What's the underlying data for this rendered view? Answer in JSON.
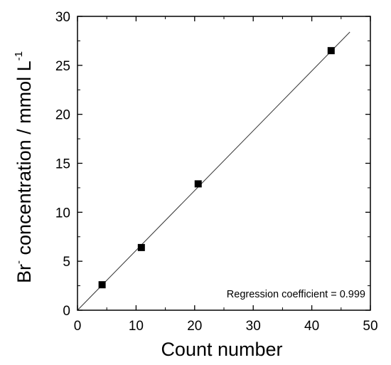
{
  "chart_data": {
    "type": "scatter",
    "xlabel": "Count number",
    "ylabel": {
      "base": "Br",
      "base_sup": "-",
      "text": " concentration / mmol L",
      "unit_sup": "-1"
    },
    "xlim": [
      0,
      50
    ],
    "ylim": [
      0,
      30
    ],
    "xticks": [
      0,
      10,
      20,
      30,
      40,
      50
    ],
    "yticks": [
      0,
      5,
      10,
      15,
      20,
      25,
      30
    ],
    "x_minor_step": 5,
    "y_minor_step": 2.5,
    "grid": false,
    "legend": "none",
    "series": [
      {
        "marker": "square",
        "color": "#000000",
        "points": [
          {
            "x": 4.2,
            "y": 2.6
          },
          {
            "x": 10.9,
            "y": 6.4
          },
          {
            "x": 20.6,
            "y": 12.9
          },
          {
            "x": 43.3,
            "y": 26.5
          }
        ]
      }
    ],
    "fit_line": {
      "color": "#333333",
      "points": [
        {
          "x": 0,
          "y": 0
        },
        {
          "x": 46.5,
          "y": 28.4
        }
      ]
    },
    "annotations": [
      {
        "text": "Regression coefficient = 0.999"
      }
    ]
  }
}
